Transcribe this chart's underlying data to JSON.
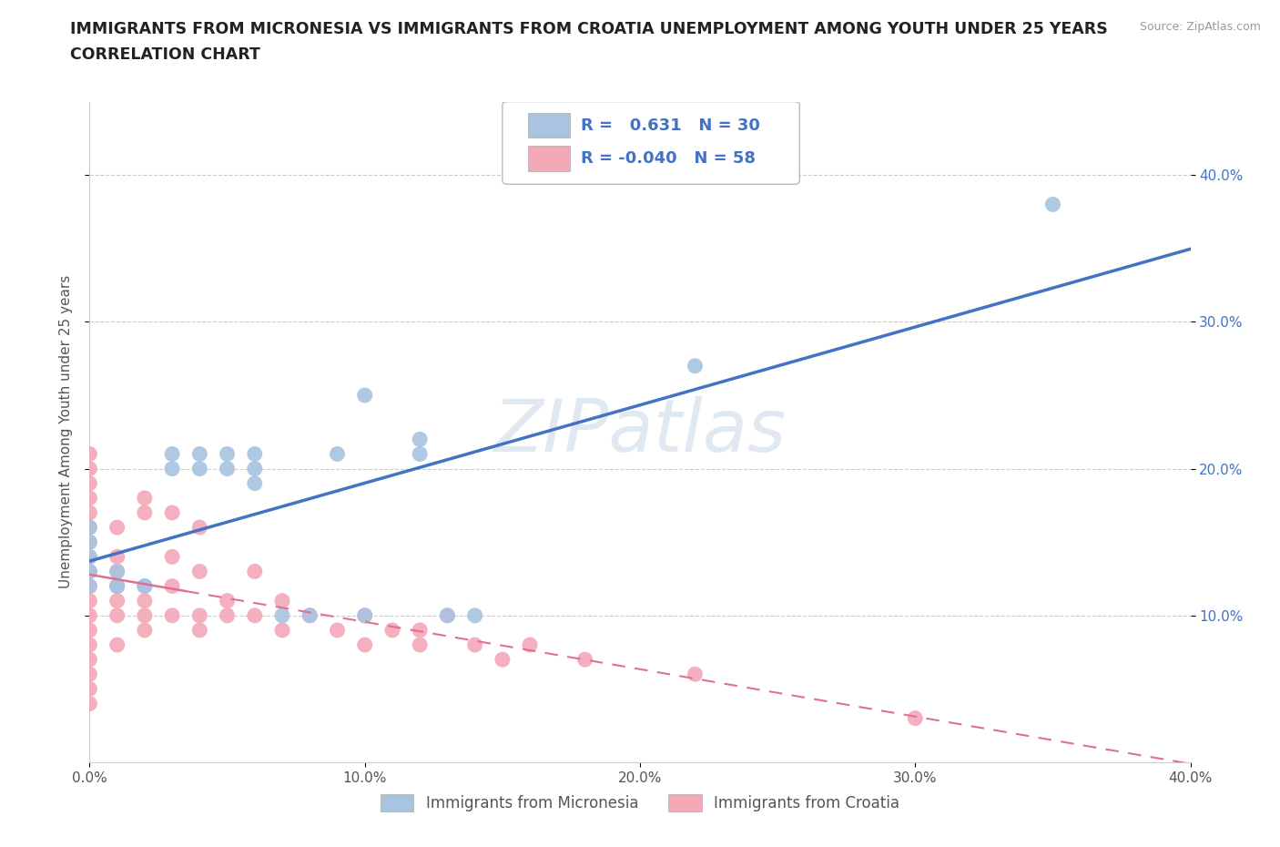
{
  "title_line1": "IMMIGRANTS FROM MICRONESIA VS IMMIGRANTS FROM CROATIA UNEMPLOYMENT AMONG YOUTH UNDER 25 YEARS",
  "title_line2": "CORRELATION CHART",
  "source": "Source: ZipAtlas.com",
  "ylabel": "Unemployment Among Youth under 25 years",
  "watermark": "ZIPatlas",
  "xlim": [
    0.0,
    0.4
  ],
  "ylim": [
    0.0,
    0.45
  ],
  "xtick_labels": [
    "0.0%",
    "10.0%",
    "20.0%",
    "30.0%",
    "40.0%"
  ],
  "xtick_vals": [
    0.0,
    0.1,
    0.2,
    0.3,
    0.4
  ],
  "ytick_labels": [
    "10.0%",
    "20.0%",
    "30.0%",
    "40.0%"
  ],
  "ytick_vals": [
    0.1,
    0.2,
    0.3,
    0.4
  ],
  "micronesia_color": "#a8c4e0",
  "croatia_color": "#f4a8b8",
  "micronesia_line_color": "#4472c4",
  "croatia_line_color": "#e07090",
  "micronesia_x": [
    0.0,
    0.0,
    0.0,
    0.0,
    0.0,
    0.01,
    0.01,
    0.01,
    0.02,
    0.02,
    0.03,
    0.03,
    0.04,
    0.04,
    0.05,
    0.05,
    0.06,
    0.06,
    0.06,
    0.07,
    0.08,
    0.09,
    0.1,
    0.1,
    0.12,
    0.12,
    0.13,
    0.14,
    0.22,
    0.35
  ],
  "micronesia_y": [
    0.13,
    0.14,
    0.15,
    0.16,
    0.12,
    0.12,
    0.13,
    0.12,
    0.12,
    0.12,
    0.2,
    0.21,
    0.2,
    0.21,
    0.2,
    0.21,
    0.2,
    0.21,
    0.19,
    0.1,
    0.1,
    0.21,
    0.25,
    0.1,
    0.21,
    0.22,
    0.1,
    0.1,
    0.27,
    0.38
  ],
  "croatia_x": [
    0.0,
    0.0,
    0.0,
    0.0,
    0.0,
    0.0,
    0.0,
    0.0,
    0.0,
    0.0,
    0.0,
    0.0,
    0.0,
    0.0,
    0.0,
    0.0,
    0.0,
    0.0,
    0.01,
    0.01,
    0.01,
    0.01,
    0.01,
    0.01,
    0.01,
    0.02,
    0.02,
    0.02,
    0.02,
    0.02,
    0.03,
    0.03,
    0.03,
    0.03,
    0.04,
    0.04,
    0.04,
    0.04,
    0.05,
    0.05,
    0.06,
    0.06,
    0.07,
    0.07,
    0.08,
    0.09,
    0.1,
    0.1,
    0.11,
    0.12,
    0.12,
    0.13,
    0.14,
    0.15,
    0.16,
    0.18,
    0.22,
    0.3
  ],
  "croatia_y": [
    0.05,
    0.06,
    0.07,
    0.08,
    0.09,
    0.1,
    0.11,
    0.12,
    0.13,
    0.14,
    0.15,
    0.16,
    0.17,
    0.18,
    0.04,
    0.19,
    0.2,
    0.21,
    0.08,
    0.1,
    0.11,
    0.12,
    0.13,
    0.14,
    0.16,
    0.09,
    0.1,
    0.11,
    0.17,
    0.18,
    0.1,
    0.12,
    0.14,
    0.17,
    0.09,
    0.1,
    0.13,
    0.16,
    0.1,
    0.11,
    0.1,
    0.13,
    0.09,
    0.11,
    0.1,
    0.09,
    0.08,
    0.1,
    0.09,
    0.08,
    0.09,
    0.1,
    0.08,
    0.07,
    0.08,
    0.07,
    0.06,
    0.03
  ],
  "background_color": "#ffffff",
  "title_color": "#222222",
  "grid_color": "#cccccc"
}
